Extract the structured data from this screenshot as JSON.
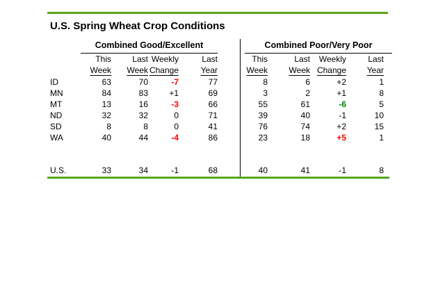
{
  "title": "U.S. Spring Wheat Crop Conditions",
  "colors": {
    "accent": "#58a618",
    "red": "#ff0000",
    "green": "#008000"
  },
  "table": {
    "section_titles": [
      "Combined Good/Excellent",
      "Combined Poor/Very Poor"
    ],
    "col_header_line1": [
      "This",
      "Last",
      "Weekly",
      "Last"
    ],
    "col_header_line2": [
      "Week",
      "Week",
      "Change",
      "Year"
    ],
    "rows": [
      {
        "label": "ID",
        "cells": [
          "63",
          "70",
          "-7",
          "77",
          "8",
          "6",
          "+2",
          "1"
        ]
      },
      {
        "label": "MN",
        "cells": [
          "84",
          "83",
          "+1",
          "69",
          "3",
          "2",
          "+1",
          "8"
        ]
      },
      {
        "label": "MT",
        "cells": [
          "13",
          "16",
          "-3",
          "66",
          "55",
          "61",
          "-6",
          "5"
        ]
      },
      {
        "label": "ND",
        "cells": [
          "32",
          "32",
          "0",
          "71",
          "39",
          "40",
          "-1",
          "10"
        ]
      },
      {
        "label": "SD",
        "cells": [
          "8",
          "8",
          "0",
          "41",
          "76",
          "74",
          "+2",
          "15"
        ]
      },
      {
        "label": "WA",
        "cells": [
          "40",
          "44",
          "-4",
          "86",
          "23",
          "18",
          "+5",
          "1"
        ]
      },
      {
        "label": "U.S.",
        "cells": [
          "33",
          "34",
          "-1",
          "68",
          "40",
          "41",
          "-1",
          "8"
        ]
      }
    ]
  },
  "chart_data": {
    "type": "table",
    "title": "U.S. Spring Wheat Crop Conditions",
    "sections": [
      "Combined Good/Excellent",
      "Combined Poor/Very Poor"
    ],
    "columns": [
      "This Week",
      "Last Week",
      "Weekly Change",
      "Last Year"
    ],
    "row_labels": [
      "ID",
      "MN",
      "MT",
      "ND",
      "SD",
      "WA",
      "U.S."
    ],
    "good_excellent": {
      "ID": [
        63,
        70,
        -7,
        77
      ],
      "MN": [
        84,
        83,
        1,
        69
      ],
      "MT": [
        13,
        16,
        -3,
        66
      ],
      "ND": [
        32,
        32,
        0,
        71
      ],
      "SD": [
        8,
        8,
        0,
        41
      ],
      "WA": [
        40,
        44,
        -4,
        86
      ],
      "U.S.": [
        33,
        34,
        -1,
        68
      ]
    },
    "poor_very_poor": {
      "ID": [
        8,
        6,
        2,
        1
      ],
      "MN": [
        3,
        2,
        1,
        8
      ],
      "MT": [
        55,
        61,
        -6,
        5
      ],
      "ND": [
        39,
        40,
        -1,
        10
      ],
      "SD": [
        76,
        74,
        2,
        15
      ],
      "WA": [
        23,
        18,
        5,
        1
      ],
      "U.S.": [
        40,
        41,
        -1,
        8
      ]
    },
    "annotations": {
      "red_bold_values": [
        "good_excellent ID -7",
        "good_excellent MT -3",
        "good_excellent WA -4",
        "poor_very_poor WA +5"
      ],
      "green_bold_values": [
        "poor_very_poor MT -6"
      ]
    }
  }
}
